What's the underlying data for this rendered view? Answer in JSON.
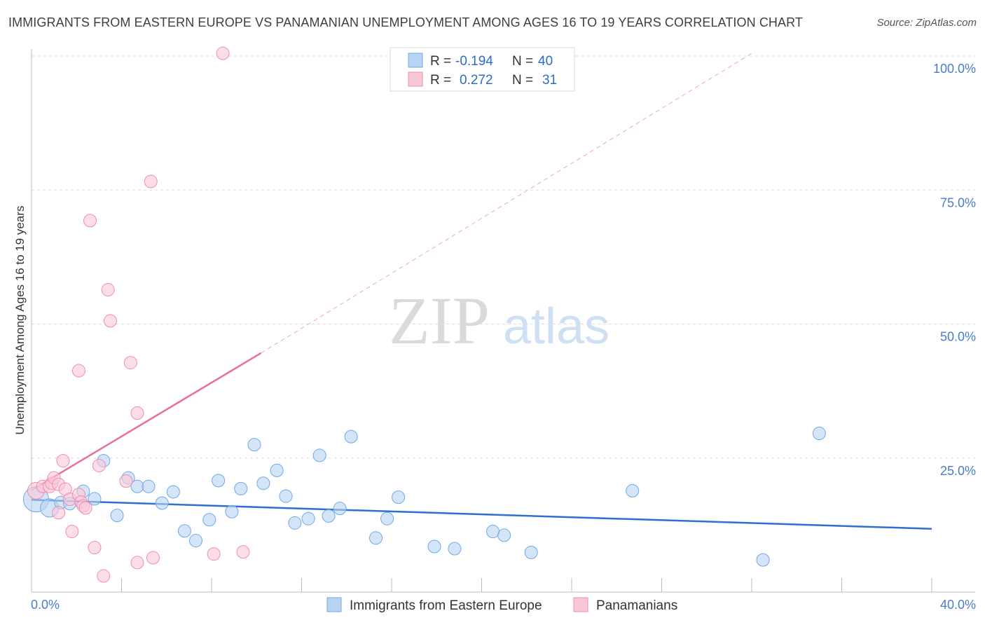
{
  "chart_data": {
    "type": "scatter",
    "title": "IMMIGRANTS FROM EASTERN EUROPE VS PANAMANIAN UNEMPLOYMENT AMONG AGES 16 TO 19 YEARS CORRELATION CHART",
    "source": "Source: ZipAtlas.com",
    "xlabel": "",
    "ylabel": "Unemployment Among Ages 16 to 19 years",
    "xlim": [
      0,
      40
    ],
    "ylim": [
      0,
      100
    ],
    "x_tick_labels": {
      "min": "0.0%",
      "max": "40.0%"
    },
    "y_ticks": [
      {
        "value": 25,
        "label": "25.0%"
      },
      {
        "value": 50,
        "label": "50.0%"
      },
      {
        "value": 75,
        "label": "75.0%"
      },
      {
        "value": 100,
        "label": "100.0%"
      }
    ],
    "watermark": {
      "part1": "ZIP",
      "part2": "atlas"
    },
    "legend": {
      "rows": [
        {
          "r_label": "R =",
          "r_value": "-0.194",
          "n_label": "N =",
          "n_value": "40"
        },
        {
          "r_label": "R =",
          "r_value": "0.272",
          "n_label": "N =",
          "n_value": "31"
        }
      ]
    },
    "series": [
      {
        "name": "Immigrants from Eastern Europe",
        "color": "#6fa8e8",
        "fill": "#b9d3f3",
        "trend": {
          "x0": 0,
          "y0": 17.2,
          "x1": 40,
          "y1": 11.8
        },
        "points": [
          {
            "x": 0.2,
            "y": 17.3,
            "s": 18
          },
          {
            "x": 0.8,
            "y": 15.7,
            "s": 13
          },
          {
            "x": 1.3,
            "y": 16.7,
            "s": 9
          },
          {
            "x": 1.7,
            "y": 16.5,
            "s": 9
          },
          {
            "x": 2.3,
            "y": 18.8,
            "s": 9
          },
          {
            "x": 2.8,
            "y": 17.4,
            "s": 9
          },
          {
            "x": 3.2,
            "y": 24.5,
            "s": 9
          },
          {
            "x": 3.8,
            "y": 14.3,
            "s": 9
          },
          {
            "x": 4.3,
            "y": 21.3,
            "s": 9
          },
          {
            "x": 4.7,
            "y": 19.7,
            "s": 9
          },
          {
            "x": 5.2,
            "y": 19.7,
            "s": 9
          },
          {
            "x": 5.8,
            "y": 16.6,
            "s": 9
          },
          {
            "x": 6.3,
            "y": 18.7,
            "s": 9
          },
          {
            "x": 6.8,
            "y": 11.4,
            "s": 9
          },
          {
            "x": 7.3,
            "y": 9.6,
            "s": 9
          },
          {
            "x": 7.9,
            "y": 13.5,
            "s": 9
          },
          {
            "x": 8.3,
            "y": 20.8,
            "s": 9
          },
          {
            "x": 8.9,
            "y": 15.0,
            "s": 9
          },
          {
            "x": 9.3,
            "y": 19.3,
            "s": 9
          },
          {
            "x": 9.9,
            "y": 27.5,
            "s": 9
          },
          {
            "x": 10.3,
            "y": 20.3,
            "s": 9
          },
          {
            "x": 10.9,
            "y": 22.7,
            "s": 9
          },
          {
            "x": 11.3,
            "y": 17.9,
            "s": 9
          },
          {
            "x": 11.7,
            "y": 12.9,
            "s": 9
          },
          {
            "x": 12.3,
            "y": 13.7,
            "s": 9
          },
          {
            "x": 12.8,
            "y": 25.5,
            "s": 9
          },
          {
            "x": 13.2,
            "y": 14.2,
            "s": 9
          },
          {
            "x": 13.7,
            "y": 15.6,
            "s": 9
          },
          {
            "x": 14.2,
            "y": 29.0,
            "s": 9
          },
          {
            "x": 15.3,
            "y": 10.1,
            "s": 9
          },
          {
            "x": 15.8,
            "y": 13.7,
            "s": 9
          },
          {
            "x": 16.3,
            "y": 17.7,
            "s": 9
          },
          {
            "x": 17.9,
            "y": 8.5,
            "s": 9
          },
          {
            "x": 18.8,
            "y": 8.1,
            "s": 9
          },
          {
            "x": 20.5,
            "y": 11.3,
            "s": 9
          },
          {
            "x": 21.0,
            "y": 10.6,
            "s": 9
          },
          {
            "x": 22.2,
            "y": 7.4,
            "s": 9
          },
          {
            "x": 26.7,
            "y": 18.9,
            "s": 9
          },
          {
            "x": 32.5,
            "y": 6.0,
            "s": 9
          },
          {
            "x": 35.0,
            "y": 29.6,
            "s": 9
          }
        ]
      },
      {
        "name": "Panamanians",
        "color": "#f08caf",
        "fill": "#f9c8d8",
        "trend": {
          "x0": 0,
          "y0": 19.0,
          "x1": 10.2,
          "y1": 44.6
        },
        "trend_dashed": {
          "x0": 10.2,
          "y0": 44.6,
          "x1": 32,
          "y1": 100.5
        },
        "points": [
          {
            "x": 0.2,
            "y": 18.9,
            "s": 12
          },
          {
            "x": 0.5,
            "y": 19.7,
            "s": 9
          },
          {
            "x": 0.8,
            "y": 19.7,
            "s": 9
          },
          {
            "x": 0.9,
            "y": 20.3,
            "s": 9
          },
          {
            "x": 1.0,
            "y": 21.3,
            "s": 9
          },
          {
            "x": 1.2,
            "y": 20.1,
            "s": 9
          },
          {
            "x": 1.2,
            "y": 14.8,
            "s": 9
          },
          {
            "x": 1.4,
            "y": 24.5,
            "s": 9
          },
          {
            "x": 1.5,
            "y": 19.2,
            "s": 9
          },
          {
            "x": 1.7,
            "y": 17.3,
            "s": 9
          },
          {
            "x": 1.8,
            "y": 11.3,
            "s": 9
          },
          {
            "x": 2.1,
            "y": 18.2,
            "s": 9
          },
          {
            "x": 2.2,
            "y": 16.8,
            "s": 9
          },
          {
            "x": 2.1,
            "y": 41.3,
            "s": 9
          },
          {
            "x": 2.3,
            "y": 16.1,
            "s": 9
          },
          {
            "x": 2.4,
            "y": 15.7,
            "s": 9
          },
          {
            "x": 2.6,
            "y": 69.3,
            "s": 9
          },
          {
            "x": 2.8,
            "y": 8.3,
            "s": 9
          },
          {
            "x": 3.0,
            "y": 23.6,
            "s": 9
          },
          {
            "x": 3.2,
            "y": 3.0,
            "s": 9
          },
          {
            "x": 3.4,
            "y": 56.4,
            "s": 9
          },
          {
            "x": 3.5,
            "y": 50.6,
            "s": 9
          },
          {
            "x": 4.2,
            "y": 20.7,
            "s": 9
          },
          {
            "x": 4.4,
            "y": 42.8,
            "s": 9
          },
          {
            "x": 4.7,
            "y": 5.5,
            "s": 9
          },
          {
            "x": 4.7,
            "y": 33.4,
            "s": 9
          },
          {
            "x": 5.3,
            "y": 76.6,
            "s": 9
          },
          {
            "x": 5.4,
            "y": 6.4,
            "s": 9
          },
          {
            "x": 8.1,
            "y": 7.1,
            "s": 9
          },
          {
            "x": 9.4,
            "y": 7.5,
            "s": 9
          },
          {
            "x": 8.5,
            "y": 100.5,
            "s": 9
          }
        ]
      }
    ]
  }
}
